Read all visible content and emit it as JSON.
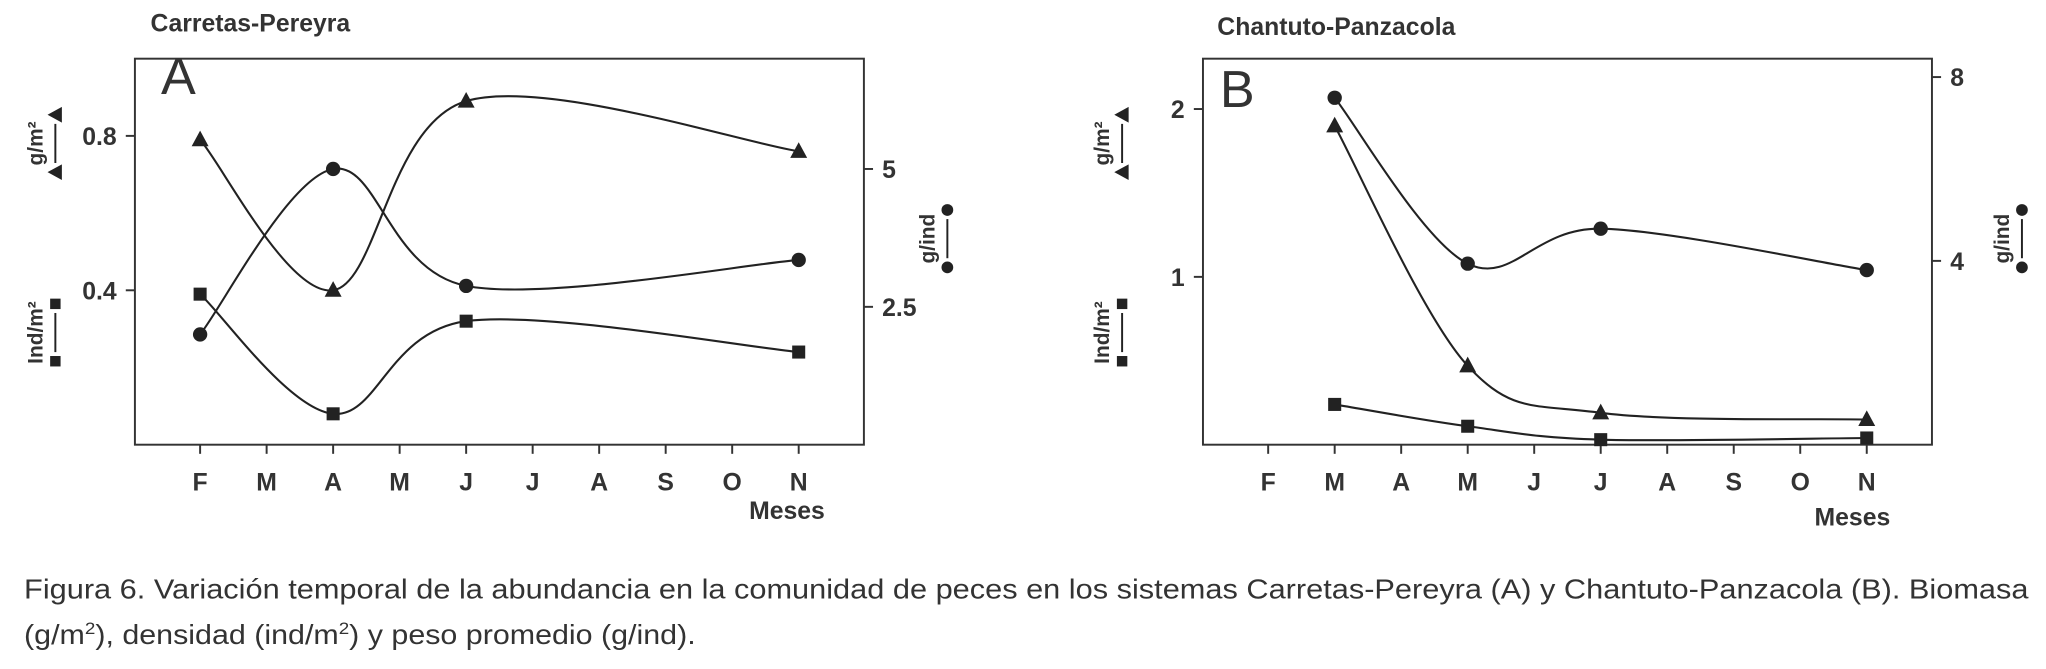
{
  "chart_data": [
    {
      "type": "line",
      "title": "Carretas-Pereyra",
      "panel_label": "A",
      "xlabel": "Meses",
      "categories": [
        "F",
        "M",
        "A",
        "M",
        "J",
        "J",
        "A",
        "S",
        "O",
        "N"
      ],
      "connect_gaps": true,
      "smooth": true,
      "ylim": [
        0,
        1
      ],
      "yticks": [
        0.4,
        0.8
      ],
      "y2lim": [
        0,
        7
      ],
      "y2ticks": [
        2.5,
        5
      ],
      "series": [
        {
          "name": "g/m²",
          "marker": "triangle",
          "color": "#222222",
          "axis": "y",
          "values": [
            0.79,
            null,
            0.4,
            null,
            0.89,
            null,
            null,
            null,
            null,
            0.76
          ]
        },
        {
          "name": "Ind/m²",
          "marker": "square",
          "color": "#222222",
          "axis": "y",
          "values": [
            0.39,
            null,
            0.08,
            null,
            0.32,
            null,
            null,
            null,
            null,
            0.24
          ]
        },
        {
          "name": "g/ind",
          "marker": "circle",
          "color": "#222222",
          "axis": "y2",
          "values": [
            2.0,
            null,
            5.0,
            null,
            2.88,
            null,
            null,
            null,
            null,
            3.35
          ]
        }
      ]
    },
    {
      "type": "line",
      "title": "Chantuto-Panzacola",
      "panel_label": "B",
      "xlabel": "Meses",
      "categories": [
        "F",
        "M",
        "A",
        "M",
        "J",
        "J",
        "A",
        "S",
        "O",
        "N"
      ],
      "connect_gaps": true,
      "smooth": true,
      "ylim": [
        0,
        2.3
      ],
      "yticks": [
        1,
        2
      ],
      "y2lim": [
        0,
        8.4
      ],
      "y2ticks": [
        4,
        8
      ],
      "series": [
        {
          "name": "g/m²",
          "marker": "triangle",
          "color": "#222222",
          "axis": "y",
          "values": [
            null,
            1.9,
            null,
            0.47,
            null,
            0.19,
            null,
            null,
            null,
            0.15
          ]
        },
        {
          "name": "Ind/m²",
          "marker": "square",
          "color": "#222222",
          "axis": "y",
          "values": [
            null,
            0.24,
            null,
            0.11,
            null,
            0.03,
            null,
            null,
            null,
            0.04
          ]
        },
        {
          "name": "g/ind",
          "marker": "circle",
          "color": "#222222",
          "axis": "y2",
          "values": [
            null,
            7.55,
            null,
            3.94,
            null,
            4.7,
            null,
            null,
            null,
            3.8
          ]
        }
      ]
    }
  ],
  "caption": [
    "Figura 6. Variación temporal de la abundancia en la comunidad de peces en los sistemas Carretas-Pereyra (A) y Chantuto-Panzacola (B). Biomasa",
    "(g/m",
    "2",
    "), densidad (ind/m",
    "2",
    ") y peso promedio (g/ind)."
  ]
}
